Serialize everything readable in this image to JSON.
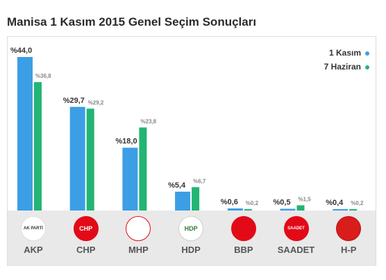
{
  "title": "Manisa 1 Kasım 2015 Genel Seçim Sonuçları",
  "colors": {
    "nov": "#3c9ee5",
    "jun": "#22b573"
  },
  "legend": [
    {
      "label": "1 Kasım",
      "color": "#3c9ee5"
    },
    {
      "label": "7 Haziran",
      "color": "#22b573"
    }
  ],
  "parties": [
    {
      "name": "AKP",
      "logo": "ak-parti-logo",
      "logo_text": "AK PARTİ"
    },
    {
      "name": "CHP",
      "logo": "chp-logo",
      "logo_text": "CHP"
    },
    {
      "name": "MHP",
      "logo": "mhp-logo",
      "logo_text": ""
    },
    {
      "name": "HDP",
      "logo": "hdp-logo",
      "logo_text": "HDP"
    },
    {
      "name": "BBP",
      "logo": "bbp-logo",
      "logo_text": ""
    },
    {
      "name": "SAADET",
      "logo": "saadet-logo",
      "logo_text": "SAADET"
    },
    {
      "name": "H-P",
      "logo": "hak-ve-ozgurlukler-logo",
      "logo_text": ""
    }
  ],
  "chart_data": {
    "type": "bar",
    "categories": [
      "AKP",
      "CHP",
      "MHP",
      "HDP",
      "BBP",
      "SAADET",
      "H-P"
    ],
    "series": [
      {
        "name": "1 Kasım",
        "values": [
          44.0,
          29.7,
          18.0,
          5.4,
          0.6,
          0.5,
          0.4
        ],
        "labels": [
          "%44,0",
          "%29,7",
          "%18,0",
          "%5,4",
          "%0,6",
          "%0,5",
          "%0,4"
        ]
      },
      {
        "name": "7 Haziran",
        "values": [
          36.8,
          29.2,
          23.8,
          6.7,
          0.2,
          1.5,
          0.2
        ],
        "labels": [
          "%36,8",
          "%29,2",
          "%23,8",
          "%6,7",
          "%0,2",
          "%1,5",
          "%0,2"
        ]
      }
    ],
    "legend_position": "top-right",
    "grid": false
  }
}
